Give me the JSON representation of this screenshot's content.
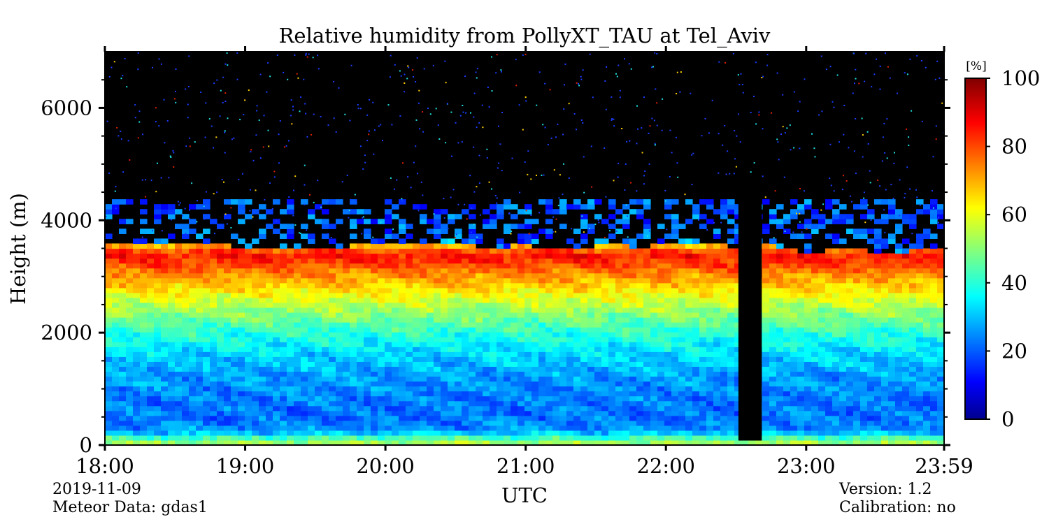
{
  "chart_data": {
    "type": "heatmap",
    "title": "Relative humidity from PollyXT_TAU at Tel_Aviv",
    "xlabel": "UTC",
    "ylabel": "Height (m)",
    "xticks": [
      "18:00",
      "19:00",
      "20:00",
      "21:00",
      "22:00",
      "23:00",
      "23:59"
    ],
    "xlim": [
      "18:00",
      "23:59"
    ],
    "yticks": [
      0,
      2000,
      4000,
      6000
    ],
    "ylim": [
      0,
      7000
    ],
    "colorbar": {
      "unit": "[%]",
      "ticks": [
        0,
        20,
        40,
        60,
        80,
        100
      ],
      "range": [
        0,
        100
      ],
      "colormap": "jet"
    },
    "profile": {
      "height_m": [
        0,
        100,
        200,
        300,
        500,
        800,
        1200,
        1600,
        2000,
        2400,
        2700,
        3000,
        3200,
        3400,
        3550,
        3650
      ],
      "rh_percent": [
        55,
        48,
        32,
        25,
        22,
        23,
        26,
        32,
        40,
        52,
        62,
        72,
        80,
        86,
        70,
        25
      ]
    },
    "no_data_period": [
      "22:31",
      "22:41"
    ],
    "background_color": "#000000",
    "colors": [
      "#00008f",
      "#0000ff",
      "#00ffff",
      "#ffff00",
      "#ff0000",
      "#800000"
    ]
  },
  "footer": {
    "date": "2019-11-09",
    "meteor": "Meteor Data: gdas1",
    "version": "Version: 1.2",
    "calibration": "Calibration: no"
  }
}
